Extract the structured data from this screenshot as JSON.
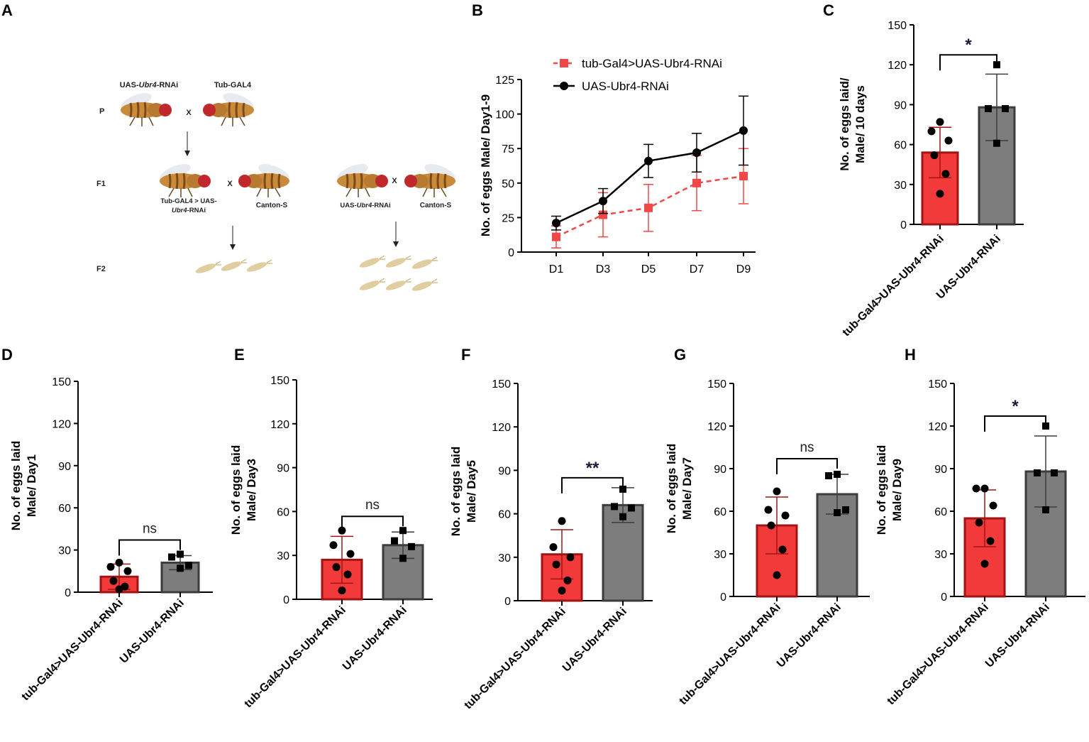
{
  "panel_letters": [
    "A",
    "B",
    "C",
    "D",
    "E",
    "F",
    "G",
    "H"
  ],
  "panel_a": {
    "row_labels": {
      "p": "P",
      "f1": "F1",
      "f2": "F2"
    },
    "cross_symbol": "X",
    "parent_1": {
      "prefix": "UAS-",
      "gene": "Ubr4",
      "suffix": "-RNAi"
    },
    "parent_2": "Tub-GAL4",
    "f1_left": {
      "line1": "Tub-GAL4 > UAS-",
      "gene": "Ubr4",
      "suffix": "-RNAi"
    },
    "f1_left_partner": "Canton-S",
    "f1_right": {
      "prefix": "UAS-",
      "gene": "Ubr4",
      "suffix": "-RNAi"
    },
    "f1_right_partner": "Canton-S",
    "colors": {
      "body": "#c98a3a",
      "stripe": "#7a4a1a",
      "eye": "#c0282c",
      "wing": "#e4e8ec",
      "egg": "#e0cda0"
    }
  },
  "colors": {
    "red_fill": "#f23a3a",
    "red_edge": "#a01414",
    "gray_fill": "#7d7d7d",
    "gray_edge": "#3c3c3c",
    "line_red": "#f04848",
    "dot": "#000000"
  },
  "chart_data": [
    {
      "panel": "B",
      "type": "line",
      "ylabel": "No. of eggs Male/ Day1-9",
      "categories": [
        "D1",
        "D3",
        "D5",
        "D7",
        "D9"
      ],
      "ylim": [
        0,
        125
      ],
      "yticks": [
        0,
        25,
        50,
        75,
        100,
        125
      ],
      "series": [
        {
          "name": "tub-Gal4>UAS-Ubr4-RNAi",
          "values": [
            11,
            27,
            32,
            50,
            55
          ],
          "errors": [
            8,
            16,
            17,
            20,
            20
          ],
          "style": "dashed",
          "marker": "square"
        },
        {
          "name": "UAS-Ubr4-RNAi",
          "values": [
            21,
            37,
            66,
            72,
            88
          ],
          "errors": [
            5,
            9,
            12,
            14,
            25
          ],
          "style": "solid",
          "marker": "circle"
        }
      ]
    },
    {
      "panel": "C",
      "type": "bar",
      "ylabel": [
        "No. of eggs laid/",
        "Male/ 10 days"
      ],
      "categories": [
        "tub-Gal4>UAS-Ubr4-RNAi",
        "UAS-Ubr4-RNAi"
      ],
      "values": [
        54,
        88
      ],
      "errors": [
        19,
        25
      ],
      "points": [
        [
          77,
          70,
          63,
          52,
          38,
          23
        ],
        [
          120,
          87,
          87,
          61
        ]
      ],
      "ylim": [
        0,
        150
      ],
      "yticks": [
        0,
        30,
        60,
        90,
        120,
        150
      ],
      "significance": "*"
    },
    {
      "panel": "D",
      "type": "bar",
      "ylabel": [
        "No. of eggs laid",
        "Male/ Day1"
      ],
      "categories": [
        "tub-Gal4>UAS-Ubr4-RNAi",
        "UAS-Ubr4-RNAi"
      ],
      "values": [
        11,
        21
      ],
      "errors": [
        9,
        5
      ],
      "points": [
        [
          21,
          18,
          15,
          8,
          4,
          2
        ],
        [
          27,
          25,
          19,
          17
        ]
      ],
      "ylim": [
        0,
        150
      ],
      "yticks": [
        0,
        30,
        60,
        90,
        120,
        150
      ],
      "significance": "ns"
    },
    {
      "panel": "E",
      "type": "bar",
      "ylabel": [
        "No. of eggs laid",
        "Male/ Day3"
      ],
      "categories": [
        "tub-Gal4>UAS-Ubr4-RNAi",
        "UAS-Ubr4-RNAi"
      ],
      "values": [
        27,
        37
      ],
      "errors": [
        16,
        9
      ],
      "points": [
        [
          47,
          37,
          31,
          22,
          17,
          6
        ],
        [
          47,
          40,
          36,
          28
        ]
      ],
      "ylim": [
        0,
        150
      ],
      "yticks": [
        0,
        30,
        60,
        90,
        120,
        150
      ],
      "significance": "ns"
    },
    {
      "panel": "F",
      "type": "bar",
      "ylabel": [
        "No. of eggs laid",
        "Male/ Day5"
      ],
      "categories": [
        "tub-Gal4>UAS-Ubr4-RNAi",
        "UAS-Ubr4-RNAi"
      ],
      "values": [
        32,
        66
      ],
      "errors": [
        17,
        12
      ],
      "points": [
        [
          55,
          37,
          30,
          25,
          14,
          7
        ],
        [
          77,
          65,
          64,
          58
        ]
      ],
      "ylim": [
        0,
        150
      ],
      "yticks": [
        0,
        30,
        60,
        90,
        120,
        150
      ],
      "significance": "**"
    },
    {
      "panel": "G",
      "type": "bar",
      "ylabel": [
        "No. of eggs laid",
        "Male/ Day7"
      ],
      "categories": [
        "tub-Gal4>UAS-Ubr4-RNAi",
        "UAS-Ubr4-RNAi"
      ],
      "values": [
        50,
        72
      ],
      "errors": [
        20,
        14
      ],
      "points": [
        [
          74,
          61,
          57,
          50,
          33,
          15
        ],
        [
          86,
          85,
          61,
          59
        ]
      ],
      "ylim": [
        0,
        150
      ],
      "yticks": [
        0,
        30,
        60,
        90,
        120,
        150
      ],
      "significance": "ns"
    },
    {
      "panel": "H",
      "type": "bar",
      "ylabel": [
        "No. of eggs laid",
        "Male/ Day9"
      ],
      "categories": [
        "tub-Gal4>UAS-Ubr4-RNAi",
        "UAS-Ubr4-RNAi"
      ],
      "values": [
        55,
        88
      ],
      "errors": [
        20,
        25
      ],
      "points": [
        [
          76,
          76,
          64,
          52,
          39,
          23
        ],
        [
          120,
          87,
          87,
          61
        ]
      ],
      "ylim": [
        0,
        150
      ],
      "yticks": [
        0,
        30,
        60,
        90,
        120,
        150
      ],
      "significance": "*"
    }
  ]
}
